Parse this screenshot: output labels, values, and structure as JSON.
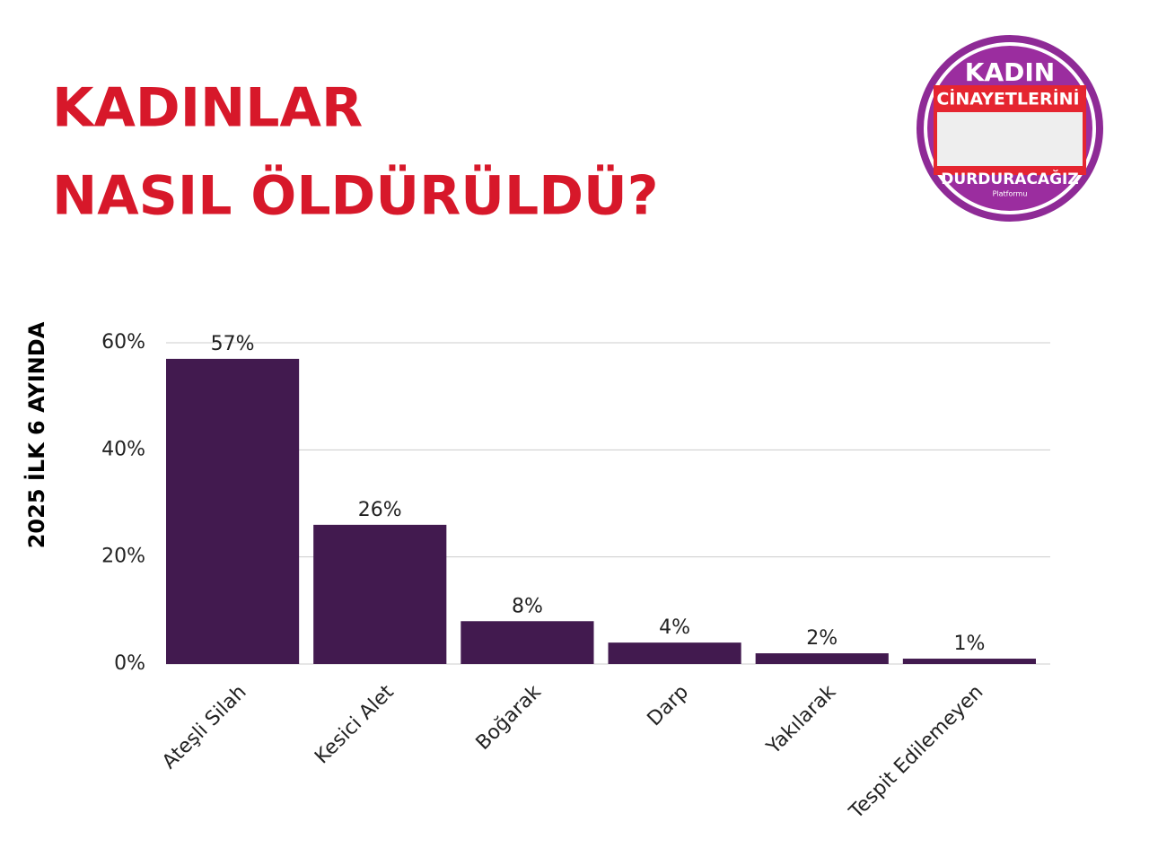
{
  "chart_data": {
    "type": "bar",
    "title": [
      "KADINLAR",
      "NASIL ÖLDÜRÜLDÜ?"
    ],
    "y_label": "2025 İLK 6 AYINDA",
    "categories": [
      "Ateşli Silah",
      "Kesici Alet",
      "Boğarak",
      "Darp",
      "Yakılarak",
      "Tespit Edilemeyen"
    ],
    "values": [
      57,
      26,
      8,
      4,
      2,
      1
    ],
    "value_labels": [
      "57%",
      "26%",
      "8%",
      "4%",
      "2%",
      "1%"
    ],
    "color": "#421a4f",
    "ylim": [
      0,
      60
    ],
    "yticks": [
      {
        "value": 0,
        "label": "0%"
      },
      {
        "value": 20,
        "label": "20%"
      },
      {
        "value": 40,
        "label": "40%"
      },
      {
        "value": 60,
        "label": "60%"
      }
    ],
    "grid": true
  },
  "logo": {
    "line1": "KADIN",
    "line2": "CİNAYETLERİNİ",
    "line3": "DURDURACAĞIZ",
    "line4": "Platformu"
  }
}
